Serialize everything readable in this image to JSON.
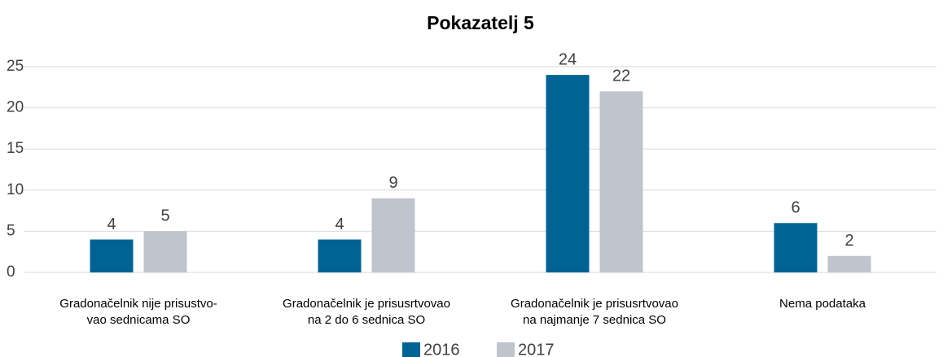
{
  "chart_data": {
    "type": "bar",
    "title": "Pokazatelj 5",
    "categories": [
      [
        "Gradonačelnik nije prisustvo-",
        "vao sednicama SO"
      ],
      [
        "Gradonačelnik je prisusrtvovao",
        "na 2 do 6 sednica SO"
      ],
      [
        "Gradonačelnik je prisusrtvovao",
        "na najmanje 7 sednica SO"
      ],
      [
        "Nema podataka"
      ]
    ],
    "series": [
      {
        "name": "2016",
        "color": "#006394",
        "values": [
          4,
          4,
          24,
          6
        ]
      },
      {
        "name": "2017",
        "color": "#bfc5cc",
        "values": [
          5,
          9,
          22,
          2
        ]
      }
    ],
    "ylim": [
      0,
      25
    ],
    "yticks": [
      0,
      5,
      10,
      15,
      20,
      25
    ],
    "grid": true,
    "legend": "bottom"
  }
}
